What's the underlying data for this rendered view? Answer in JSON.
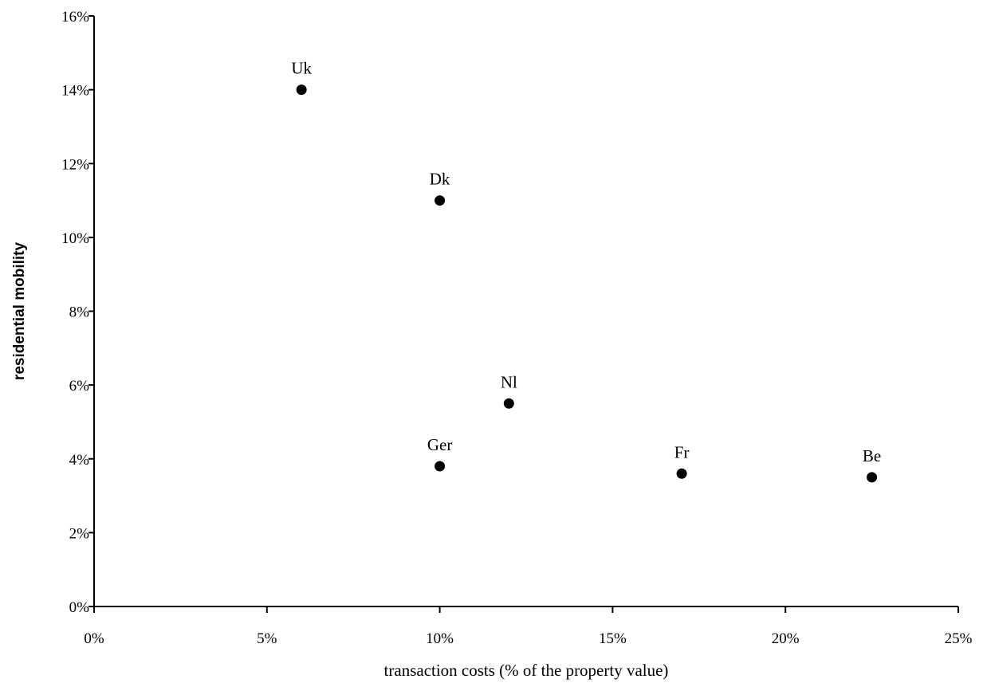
{
  "chart_data": {
    "type": "scatter",
    "title": "",
    "xlabel": "transaction costs (% of the property value)",
    "ylabel": "residential mobility",
    "xlim": [
      0,
      25
    ],
    "ylim": [
      0,
      16
    ],
    "x_ticks": [
      0,
      5,
      10,
      15,
      20,
      25
    ],
    "y_ticks": [
      0,
      2,
      4,
      6,
      8,
      10,
      12,
      14,
      16
    ],
    "x_tick_labels": [
      "0%",
      "5%",
      "10%",
      "15%",
      "20%",
      "25%"
    ],
    "y_tick_labels": [
      "0%",
      "2%",
      "4%",
      "6%",
      "8%",
      "10%",
      "12%",
      "14%",
      "16%"
    ],
    "grid": false,
    "legend": "none",
    "marker_color": "#000000",
    "points": [
      {
        "label": "Uk",
        "x": 6,
        "y": 14
      },
      {
        "label": "Dk",
        "x": 10,
        "y": 11
      },
      {
        "label": "Nl",
        "x": 12,
        "y": 5.5
      },
      {
        "label": "Ger",
        "x": 10,
        "y": 3.8
      },
      {
        "label": "Fr",
        "x": 17,
        "y": 3.6
      },
      {
        "label": "Be",
        "x": 22.5,
        "y": 3.5
      }
    ]
  }
}
